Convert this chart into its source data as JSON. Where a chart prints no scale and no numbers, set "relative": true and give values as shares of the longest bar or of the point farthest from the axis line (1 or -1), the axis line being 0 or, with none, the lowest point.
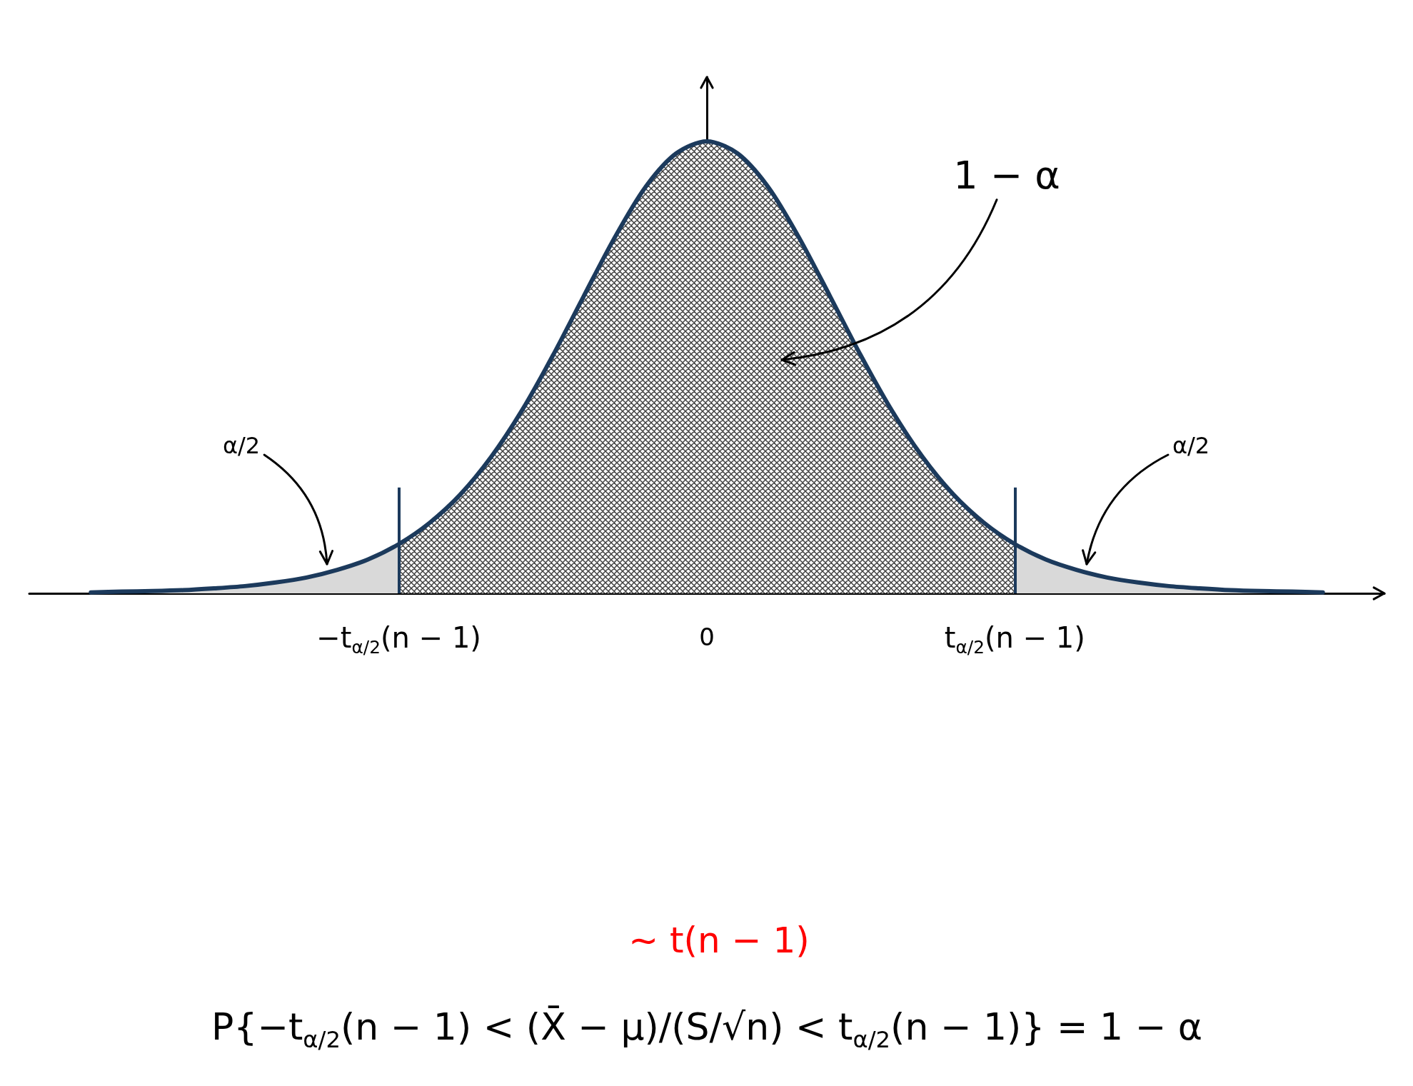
{
  "chart_data": {
    "type": "area",
    "relative": true,
    "categories": [
      null,
      null,
      null,
      null,
      null,
      null,
      null,
      null,
      null,
      null,
      null,
      null,
      "−t$_{α/2}$(n − 1)",
      null,
      null,
      null,
      null,
      null,
      null,
      null,
      null,
      null,
      "0",
      null,
      null,
      null,
      null,
      null,
      null,
      null,
      null,
      null,
      "t$_{α/2}$(n − 1)",
      null,
      null,
      null,
      null,
      null,
      null,
      null,
      null,
      null,
      null,
      null,
      null
    ],
    "series": [
      {
        "color": "#d9d9d9",
        "values": [
          null,
          null,
          0.002,
          0.004,
          0.005,
          0.007,
          0.011,
          0.016,
          0.024,
          0.035,
          0.052,
          0.075,
          0.109,
          null,
          null,
          null,
          null,
          null,
          null,
          null,
          null,
          null,
          null,
          null,
          null,
          null,
          null,
          null,
          null,
          null,
          null,
          null,
          null,
          null,
          null,
          null,
          null,
          null,
          null,
          null,
          null,
          null,
          null,
          null,
          null
        ]
      },
      {
        "color": "#404040",
        "values": [
          null,
          null,
          null,
          null,
          null,
          null,
          null,
          null,
          null,
          null,
          null,
          null,
          0.109,
          0.156,
          0.219,
          0.302,
          0.405,
          0.526,
          0.657,
          0.786,
          0.898,
          0.973,
          1,
          0.973,
          0.898,
          0.786,
          0.657,
          0.526,
          0.405,
          0.302,
          0.219,
          0.156,
          0.109,
          null,
          null,
          null,
          null,
          null,
          null,
          null,
          null,
          null,
          null,
          null,
          null
        ]
      },
      {
        "color": "#d9d9d9",
        "values": [
          null,
          null,
          null,
          null,
          null,
          null,
          null,
          null,
          null,
          null,
          null,
          null,
          null,
          null,
          null,
          null,
          null,
          null,
          null,
          null,
          null,
          null,
          null,
          null,
          null,
          null,
          null,
          null,
          null,
          null,
          null,
          null,
          0.109,
          0.075,
          0.052,
          0.035,
          0.024,
          0.016,
          0.011,
          0.007,
          0.005,
          0.004,
          0.002,
          null,
          null
        ]
      },
      {
        "type": "line",
        "color": "#1c3a5c",
        "values": [
          null,
          null,
          0.002,
          0.004,
          0.005,
          0.007,
          0.011,
          0.016,
          0.024,
          0.035,
          0.052,
          0.075,
          0.109,
          0.156,
          0.219,
          0.302,
          0.405,
          0.526,
          0.657,
          0.786,
          0.898,
          0.973,
          1,
          0.973,
          0.898,
          0.786,
          0.657,
          0.526,
          0.405,
          0.302,
          0.219,
          0.156,
          0.109,
          0.075,
          0.052,
          0.035,
          0.024,
          0.016,
          0.011,
          0.007,
          0.005,
          0.004,
          0.002,
          null,
          null
        ]
      }
    ],
    "ref_lines": [
      {
        "axis": "x",
        "value": "−t$_{α/2}$(n − 1)",
        "color": "#1c3a5c"
      },
      {
        "axis": "x",
        "value": "t$_{α/2}$(n − 1)",
        "color": "#1c3a5c"
      }
    ],
    "annotations": [
      "1 − α",
      "α/2",
      "α/2",
      "∼ t(n − 1)",
      "P{−t$_{α/2}$(n − 1) < (X̄ − μ)/(S/√n) < t$_{α/2}$(n − 1)} = 1 − α"
    ]
  }
}
